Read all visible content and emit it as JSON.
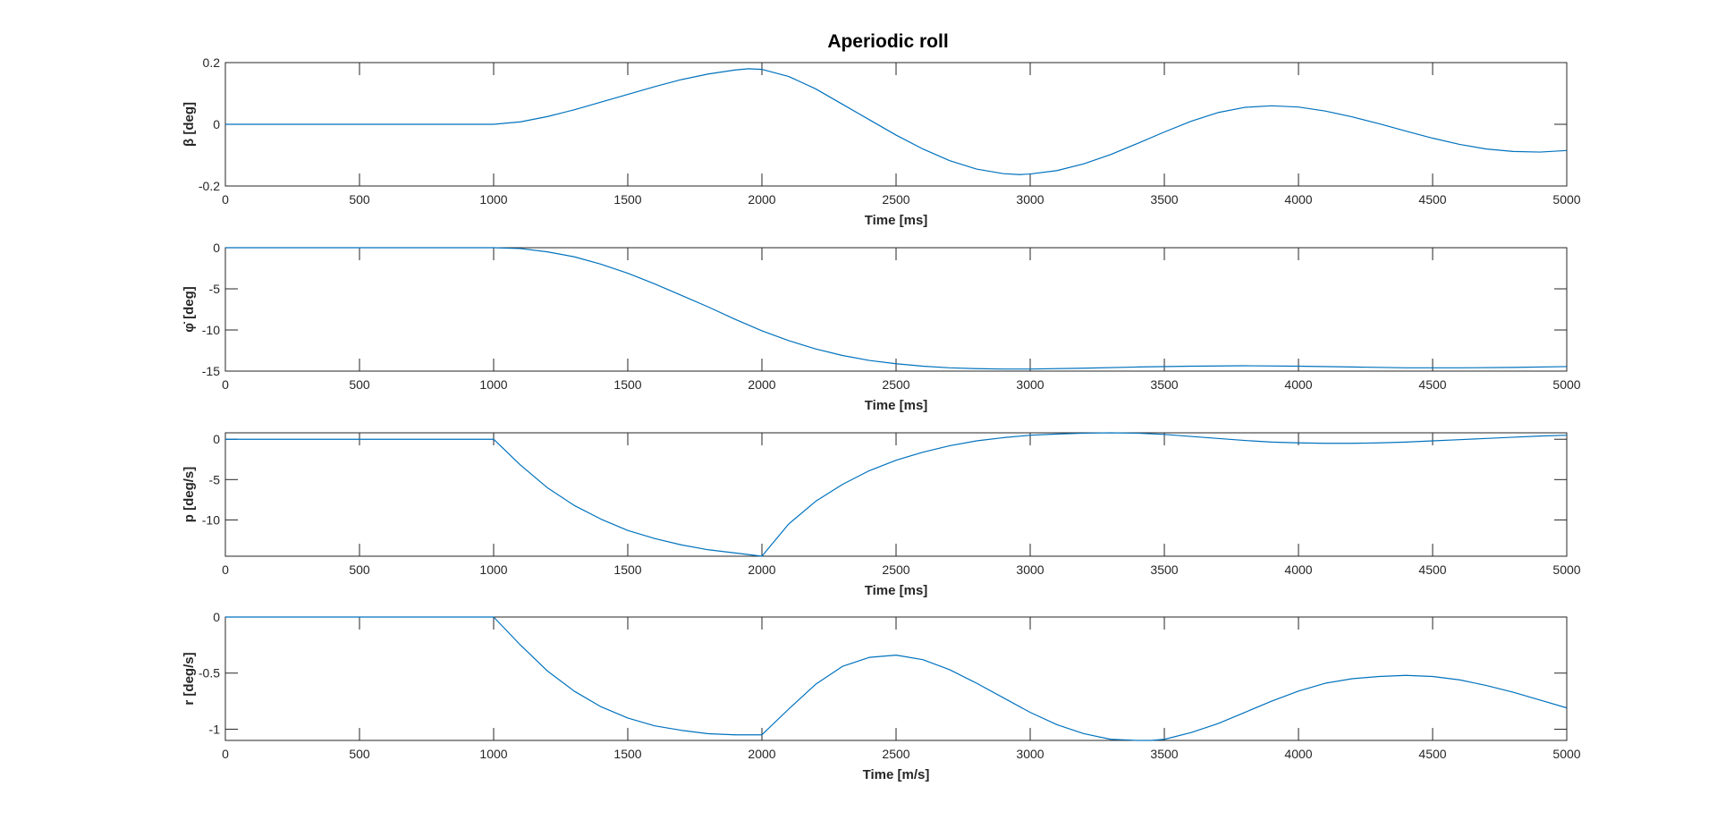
{
  "figure": {
    "title": "Aperiodic roll"
  },
  "chart_data": [
    {
      "type": "line",
      "xlabel": "Time [ms]",
      "ylabel": "β [deg]",
      "xlim": [
        0,
        5000
      ],
      "ylim": [
        -0.2,
        0.2
      ],
      "xticks": [
        0,
        500,
        1000,
        1500,
        2000,
        2500,
        3000,
        3500,
        4000,
        4500,
        5000
      ],
      "yticks": [
        -0.2,
        0,
        0.2
      ],
      "ytick_labels": [
        "-0.2",
        "0",
        "0.2"
      ],
      "grid": false,
      "series": [
        {
          "color": "#0072BD",
          "x": [
            0,
            1000,
            1100,
            1200,
            1300,
            1400,
            1500,
            1600,
            1700,
            1800,
            1900,
            1950,
            2000,
            2100,
            2200,
            2300,
            2400,
            2500,
            2600,
            2700,
            2800,
            2900,
            2960,
            3000,
            3100,
            3200,
            3300,
            3400,
            3500,
            3600,
            3700,
            3800,
            3900,
            4000,
            4100,
            4200,
            4300,
            4400,
            4500,
            4600,
            4700,
            4800,
            4900,
            5000
          ],
          "y": [
            0,
            0,
            0.008,
            0.025,
            0.047,
            0.072,
            0.097,
            0.122,
            0.145,
            0.163,
            0.176,
            0.18,
            0.178,
            0.155,
            0.115,
            0.065,
            0.015,
            -0.035,
            -0.08,
            -0.118,
            -0.145,
            -0.16,
            -0.163,
            -0.161,
            -0.15,
            -0.128,
            -0.098,
            -0.062,
            -0.025,
            0.01,
            0.038,
            0.055,
            0.06,
            0.056,
            0.043,
            0.024,
            0.002,
            -0.022,
            -0.045,
            -0.065,
            -0.08,
            -0.088,
            -0.09,
            -0.085
          ]
        }
      ]
    },
    {
      "type": "line",
      "xlabel": "Time [ms]",
      "ylabel": "φ̇ [deg]",
      "xlim": [
        0,
        5000
      ],
      "ylim": [
        -15,
        0
      ],
      "xticks": [
        0,
        500,
        1000,
        1500,
        2000,
        2500,
        3000,
        3500,
        4000,
        4500,
        5000
      ],
      "yticks": [
        -15,
        -10,
        -5,
        0
      ],
      "ytick_labels": [
        "-15",
        "-10",
        "-5",
        "0"
      ],
      "grid": false,
      "series": [
        {
          "color": "#0072BD",
          "x": [
            0,
            1000,
            1100,
            1200,
            1300,
            1400,
            1500,
            1600,
            1700,
            1800,
            1900,
            2000,
            2100,
            2200,
            2300,
            2400,
            2500,
            2600,
            2700,
            2800,
            2900,
            3000,
            3200,
            3400,
            3600,
            3800,
            4000,
            4200,
            4400,
            4600,
            4800,
            5000
          ],
          "y": [
            0,
            0,
            -0.1,
            -0.5,
            -1.1,
            -2.0,
            -3.1,
            -4.4,
            -5.8,
            -7.2,
            -8.7,
            -10.1,
            -11.3,
            -12.3,
            -13.1,
            -13.7,
            -14.1,
            -14.4,
            -14.6,
            -14.7,
            -14.75,
            -14.75,
            -14.65,
            -14.5,
            -14.4,
            -14.35,
            -14.4,
            -14.5,
            -14.6,
            -14.6,
            -14.55,
            -14.45
          ]
        }
      ]
    },
    {
      "type": "line",
      "xlabel": "Time [ms]",
      "ylabel": "p [deg/s]",
      "xlim": [
        0,
        5000
      ],
      "ylim": [
        -14.5,
        0.8
      ],
      "xticks": [
        0,
        500,
        1000,
        1500,
        2000,
        2500,
        3000,
        3500,
        4000,
        4500,
        5000
      ],
      "yticks": [
        -10,
        -5,
        0
      ],
      "ytick_labels": [
        "-10",
        "-5",
        "0"
      ],
      "grid": false,
      "series": [
        {
          "color": "#0072BD",
          "x": [
            0,
            1000,
            1100,
            1200,
            1300,
            1400,
            1500,
            1600,
            1700,
            1800,
            1900,
            2000,
            2100,
            2200,
            2300,
            2400,
            2500,
            2600,
            2700,
            2800,
            2900,
            3000,
            3100,
            3200,
            3300,
            3400,
            3500,
            3600,
            3700,
            3800,
            3900,
            4000,
            4100,
            4200,
            4300,
            4400,
            4500,
            4600,
            4700,
            4800,
            4900,
            5000
          ],
          "y": [
            0,
            0,
            -3.2,
            -6.0,
            -8.2,
            -9.9,
            -11.3,
            -12.3,
            -13.1,
            -13.7,
            -14.1,
            -14.5,
            -10.5,
            -7.7,
            -5.6,
            -3.9,
            -2.6,
            -1.6,
            -0.8,
            -0.2,
            0.2,
            0.5,
            0.65,
            0.75,
            0.8,
            0.75,
            0.6,
            0.35,
            0.1,
            -0.15,
            -0.35,
            -0.45,
            -0.5,
            -0.5,
            -0.45,
            -0.35,
            -0.2,
            -0.05,
            0.1,
            0.25,
            0.4,
            0.5
          ]
        }
      ]
    },
    {
      "type": "line",
      "xlabel": "Time [m/s]",
      "ylabel": "r [deg/s]",
      "xlim": [
        0,
        5000
      ],
      "ylim": [
        -1.1,
        0
      ],
      "xticks": [
        0,
        500,
        1000,
        1500,
        2000,
        2500,
        3000,
        3500,
        4000,
        4500,
        5000
      ],
      "yticks": [
        -1,
        -0.5,
        0
      ],
      "ytick_labels": [
        "-1",
        "-0.5",
        "0"
      ],
      "grid": false,
      "series": [
        {
          "color": "#0072BD",
          "x": [
            0,
            1000,
            1100,
            1200,
            1300,
            1400,
            1500,
            1600,
            1700,
            1800,
            1900,
            2000,
            2100,
            2200,
            2300,
            2400,
            2500,
            2600,
            2700,
            2800,
            2900,
            3000,
            3100,
            3200,
            3300,
            3400,
            3450,
            3500,
            3600,
            3700,
            3800,
            3900,
            4000,
            4100,
            4200,
            4300,
            4400,
            4500,
            4600,
            4700,
            4800,
            4900,
            5000
          ],
          "y": [
            0,
            0,
            -0.25,
            -0.48,
            -0.66,
            -0.8,
            -0.9,
            -0.97,
            -1.01,
            -1.04,
            -1.05,
            -1.05,
            -0.82,
            -0.6,
            -0.44,
            -0.36,
            -0.34,
            -0.38,
            -0.47,
            -0.59,
            -0.72,
            -0.85,
            -0.96,
            -1.04,
            -1.09,
            -1.1,
            -1.1,
            -1.09,
            -1.03,
            -0.95,
            -0.85,
            -0.75,
            -0.66,
            -0.59,
            -0.55,
            -0.53,
            -0.52,
            -0.53,
            -0.56,
            -0.61,
            -0.67,
            -0.74,
            -0.81
          ]
        }
      ]
    }
  ]
}
